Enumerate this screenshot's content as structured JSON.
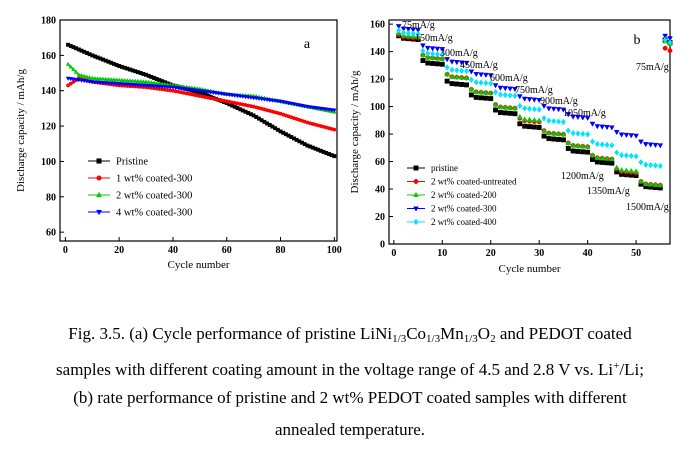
{
  "chart_data": [
    {
      "type": "line",
      "panel_label": "a",
      "xlabel": "Cycle number",
      "ylabel": "Discharge capacity / mAh/g",
      "xlim": [
        -2,
        101
      ],
      "ylim": [
        55,
        180
      ],
      "xticks": [
        0,
        20,
        40,
        60,
        80,
        100
      ],
      "yticks": [
        60,
        80,
        100,
        120,
        140,
        160,
        180
      ],
      "legend_position": "bottom-left",
      "series": [
        {
          "name": "Pristine",
          "color": "#000000",
          "marker": "square",
          "x": [
            1,
            10,
            20,
            30,
            40,
            50,
            60,
            70,
            80,
            90,
            100
          ],
          "y": [
            166,
            160,
            154,
            149,
            143,
            139,
            133,
            126,
            117,
            109,
            103
          ]
        },
        {
          "name": "1 wt% coated-300",
          "color": "#ff0000",
          "marker": "circle",
          "x": [
            1,
            5,
            10,
            20,
            30,
            40,
            50,
            60,
            70,
            80,
            90,
            100
          ],
          "y": [
            143,
            147,
            145,
            143,
            142,
            140,
            137,
            134,
            131,
            127,
            122,
            118
          ]
        },
        {
          "name": "2 wt% coated-300",
          "color": "#00cc00",
          "marker": "triangle",
          "x": [
            1,
            5,
            10,
            20,
            30,
            40,
            50,
            60,
            70,
            80,
            90,
            100
          ],
          "y": [
            155,
            149,
            147,
            146,
            145,
            143,
            141,
            138,
            137,
            134,
            131,
            128
          ]
        },
        {
          "name": "4 wt% coated-300",
          "color": "#0000ff",
          "marker": "triangle-down",
          "x": [
            1,
            10,
            20,
            30,
            40,
            50,
            60,
            70,
            80,
            90,
            100
          ],
          "y": [
            147,
            145,
            144,
            143,
            142,
            140,
            138,
            136,
            134,
            131,
            129
          ]
        }
      ]
    },
    {
      "type": "scatter",
      "panel_label": "b",
      "xlabel": "Cycle number",
      "ylabel": "Discharge capacity / mAh/g",
      "xlim": [
        -1,
        57
      ],
      "ylim": [
        0,
        163
      ],
      "xticks": [
        0,
        10,
        20,
        30,
        40,
        50
      ],
      "yticks": [
        0,
        20,
        40,
        60,
        80,
        100,
        120,
        140,
        160
      ],
      "legend_position": "bottom-left",
      "rate_labels": [
        "75mA/g",
        "150mA/g",
        "300mA/g",
        "450mA/g",
        "600mA/g",
        "750mA/g",
        "900mA/g",
        "1050mA/g",
        "1200mA/g",
        "1350mA/g",
        "1500mA/g",
        "75mA/g"
      ],
      "series": [
        {
          "name": "pristine",
          "color": "#000000",
          "marker": "square",
          "levels": [
            150,
            132,
            117,
            107,
            96,
            86,
            77,
            68,
            60,
            51,
            42,
            147
          ]
        },
        {
          "name": "2 wt% coated-untreated",
          "color": "#ff0000",
          "marker": "circle",
          "levels": [
            151,
            136,
            122,
            111,
            100,
            90,
            81,
            72,
            63,
            53,
            44,
            141
          ]
        },
        {
          "name": "2 wt% coated-200",
          "color": "#00cc00",
          "marker": "triangle",
          "levels": [
            152,
            136,
            122,
            111,
            100,
            91,
            81,
            72,
            63,
            54,
            44,
            146
          ]
        },
        {
          "name": "2 wt% coated-300",
          "color": "#0000ff",
          "marker": "triangle-down",
          "levels": [
            157,
            143,
            133,
            124,
            114,
            106,
            99,
            93,
            86,
            80,
            73,
            150
          ]
        },
        {
          "name": "2 wt% coated-400",
          "color": "#00e5ff",
          "marker": "diamond",
          "levels": [
            154,
            139,
            127,
            118,
            109,
            99,
            90,
            81,
            73,
            65,
            58,
            147
          ]
        }
      ]
    }
  ],
  "caption": {
    "line1": {
      "t1": "Fig. 3.5. (a) Cycle performance of pristine LiNi",
      "s1": "1/3",
      "t2": "Co",
      "s2": "1/3",
      "t3": "Mn",
      "s3": "1/3",
      "t4": "O",
      "s4": "2",
      "t5": " and PEDOT coated"
    },
    "line2": {
      "t1": "samples with different coating amount in the voltage range of 4.5 and 2.8 V vs. Li",
      "sup": "+",
      "t2": "/Li;"
    },
    "line3": "(b) rate performance of pristine and 2 wt% PEDOT coated samples with different",
    "line4": "annealed temperature."
  }
}
